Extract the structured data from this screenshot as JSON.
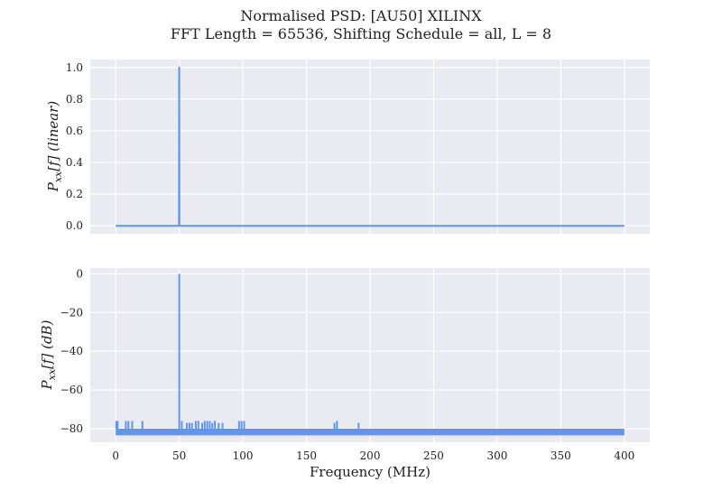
{
  "title": {
    "line1": "Normalised PSD: [AU50] XILINX",
    "line2": "FFT Length = 65536, Shifting Schedule = all, L = 8"
  },
  "colors": {
    "series": "#6495ed",
    "axes_bg": "#eaeaf2",
    "grid": "#ffffff"
  },
  "chart_data": [
    {
      "type": "line",
      "scale": "linear",
      "xlabel": "",
      "ylabel": "P_{xx}[f] (linear)",
      "xlim": [
        -20,
        420
      ],
      "ylim": [
        -0.05,
        1.05
      ],
      "x_ticks": [
        0,
        50,
        100,
        150,
        200,
        250,
        300,
        350,
        400
      ],
      "y_ticks": [
        0.0,
        0.2,
        0.4,
        0.6,
        0.8,
        1.0
      ],
      "y_tick_labels": [
        "0.0",
        "0.2",
        "0.4",
        "0.6",
        "0.8",
        "1.0"
      ],
      "grid": true,
      "x_tick_labels_visible": false,
      "series": [
        {
          "x": [
            0,
            49.8,
            49.9,
            50.0,
            50.1,
            400
          ],
          "y": [
            0.0,
            0.0,
            1.0,
            1.0,
            0.0,
            0.0
          ]
        }
      ]
    },
    {
      "type": "line",
      "scale": "dB",
      "xlabel": "Frequency (MHz)",
      "ylabel": "P_{xx}[f] (dB)",
      "xlim": [
        -20,
        420
      ],
      "ylim": [
        -87,
        3
      ],
      "x_ticks": [
        0,
        50,
        100,
        150,
        200,
        250,
        300,
        350,
        400
      ],
      "x_tick_labels": [
        "0",
        "50",
        "100",
        "150",
        "200",
        "250",
        "300",
        "350",
        "400"
      ],
      "y_ticks": [
        0,
        -20,
        -40,
        -60,
        -80
      ],
      "y_tick_labels": [
        "0",
        "−20",
        "−40",
        "−60",
        "−80"
      ],
      "grid": true,
      "noise_floor": {
        "x_range": [
          0,
          400
        ],
        "y_min": -83,
        "y_max": -80
      },
      "peaks": [
        {
          "x": 50,
          "y": 0
        }
      ],
      "spurs": [
        {
          "x": 0.5,
          "y": -76
        },
        {
          "x": 1.5,
          "y": -76
        },
        {
          "x": 8,
          "y": -76
        },
        {
          "x": 10,
          "y": -76
        },
        {
          "x": 13,
          "y": -76
        },
        {
          "x": 21,
          "y": -76
        },
        {
          "x": 52,
          "y": -76
        },
        {
          "x": 56,
          "y": -77
        },
        {
          "x": 58,
          "y": -77
        },
        {
          "x": 60,
          "y": -77
        },
        {
          "x": 63,
          "y": -76
        },
        {
          "x": 65,
          "y": -76
        },
        {
          "x": 68,
          "y": -77
        },
        {
          "x": 70,
          "y": -76
        },
        {
          "x": 72,
          "y": -76
        },
        {
          "x": 74,
          "y": -76
        },
        {
          "x": 76,
          "y": -77
        },
        {
          "x": 78,
          "y": -76
        },
        {
          "x": 81,
          "y": -77
        },
        {
          "x": 84,
          "y": -77
        },
        {
          "x": 97,
          "y": -76
        },
        {
          "x": 99,
          "y": -76
        },
        {
          "x": 101,
          "y": -76
        },
        {
          "x": 172,
          "y": -77
        },
        {
          "x": 174,
          "y": -76
        },
        {
          "x": 191,
          "y": -77
        },
        {
          "x": 399,
          "y": -80
        }
      ]
    }
  ]
}
